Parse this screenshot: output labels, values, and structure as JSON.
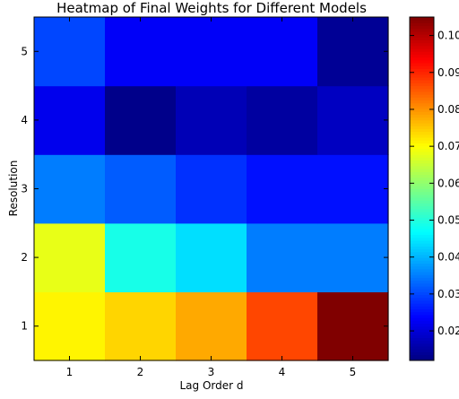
{
  "chart_data": {
    "type": "heatmap",
    "title": "Heatmap of Final Weights for Different Models",
    "xlabel": "Lag Order d",
    "ylabel": "Resolution",
    "x_categories": [
      "1",
      "2",
      "3",
      "4",
      "5"
    ],
    "y_categories": [
      "1",
      "2",
      "3",
      "4",
      "5"
    ],
    "values": [
      [
        0.071,
        0.074,
        0.078,
        0.087,
        0.105
      ],
      [
        0.068,
        0.049,
        0.044,
        0.035,
        0.035
      ],
      [
        0.035,
        0.032,
        0.028,
        0.025,
        0.025
      ],
      [
        0.022,
        0.013,
        0.017,
        0.015,
        0.018
      ],
      [
        0.03,
        0.023,
        0.023,
        0.023,
        0.014
      ]
    ],
    "values_note_rows": "row index 0 = Resolution 1 (bottom)",
    "colorbar": {
      "vmin": 0.012,
      "vmax": 0.105,
      "ticks": [
        "0.02",
        "0.03",
        "0.04",
        "0.05",
        "0.06",
        "0.07",
        "0.08",
        "0.09",
        "0.10"
      ],
      "colormap": "jet"
    },
    "grid": false,
    "legend": "colorbar-right"
  }
}
